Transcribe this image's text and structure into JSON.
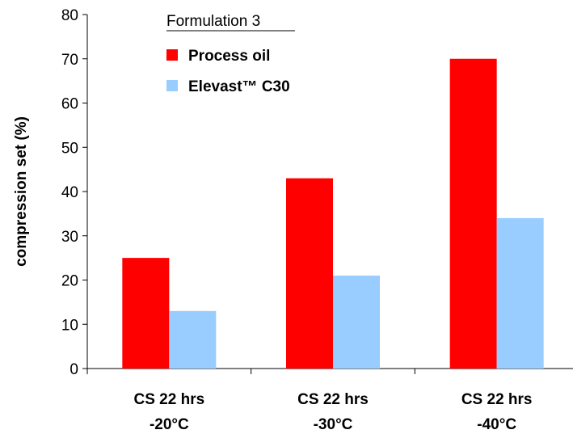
{
  "chart_data": {
    "type": "bar",
    "title": "",
    "xlabel": "",
    "ylabel": "compression set (%)",
    "ylim": [
      0,
      80
    ],
    "yticks": [
      0,
      10,
      20,
      30,
      40,
      50,
      60,
      70,
      80
    ],
    "categories": [
      [
        "CS 22 hrs",
        "-20°C"
      ],
      [
        "CS 22 hrs",
        "-30°C"
      ],
      [
        "CS 22 hrs",
        "-40°C"
      ]
    ],
    "legend": {
      "title": "Formulation 3",
      "placement": "top-left"
    },
    "series": [
      {
        "name": "Process oil",
        "color": "#ff0000",
        "values": [
          25,
          43,
          70
        ]
      },
      {
        "name": "Elevast™ C30",
        "color": "#99ccff",
        "values": [
          13,
          21,
          34
        ]
      }
    ],
    "grid": false
  }
}
